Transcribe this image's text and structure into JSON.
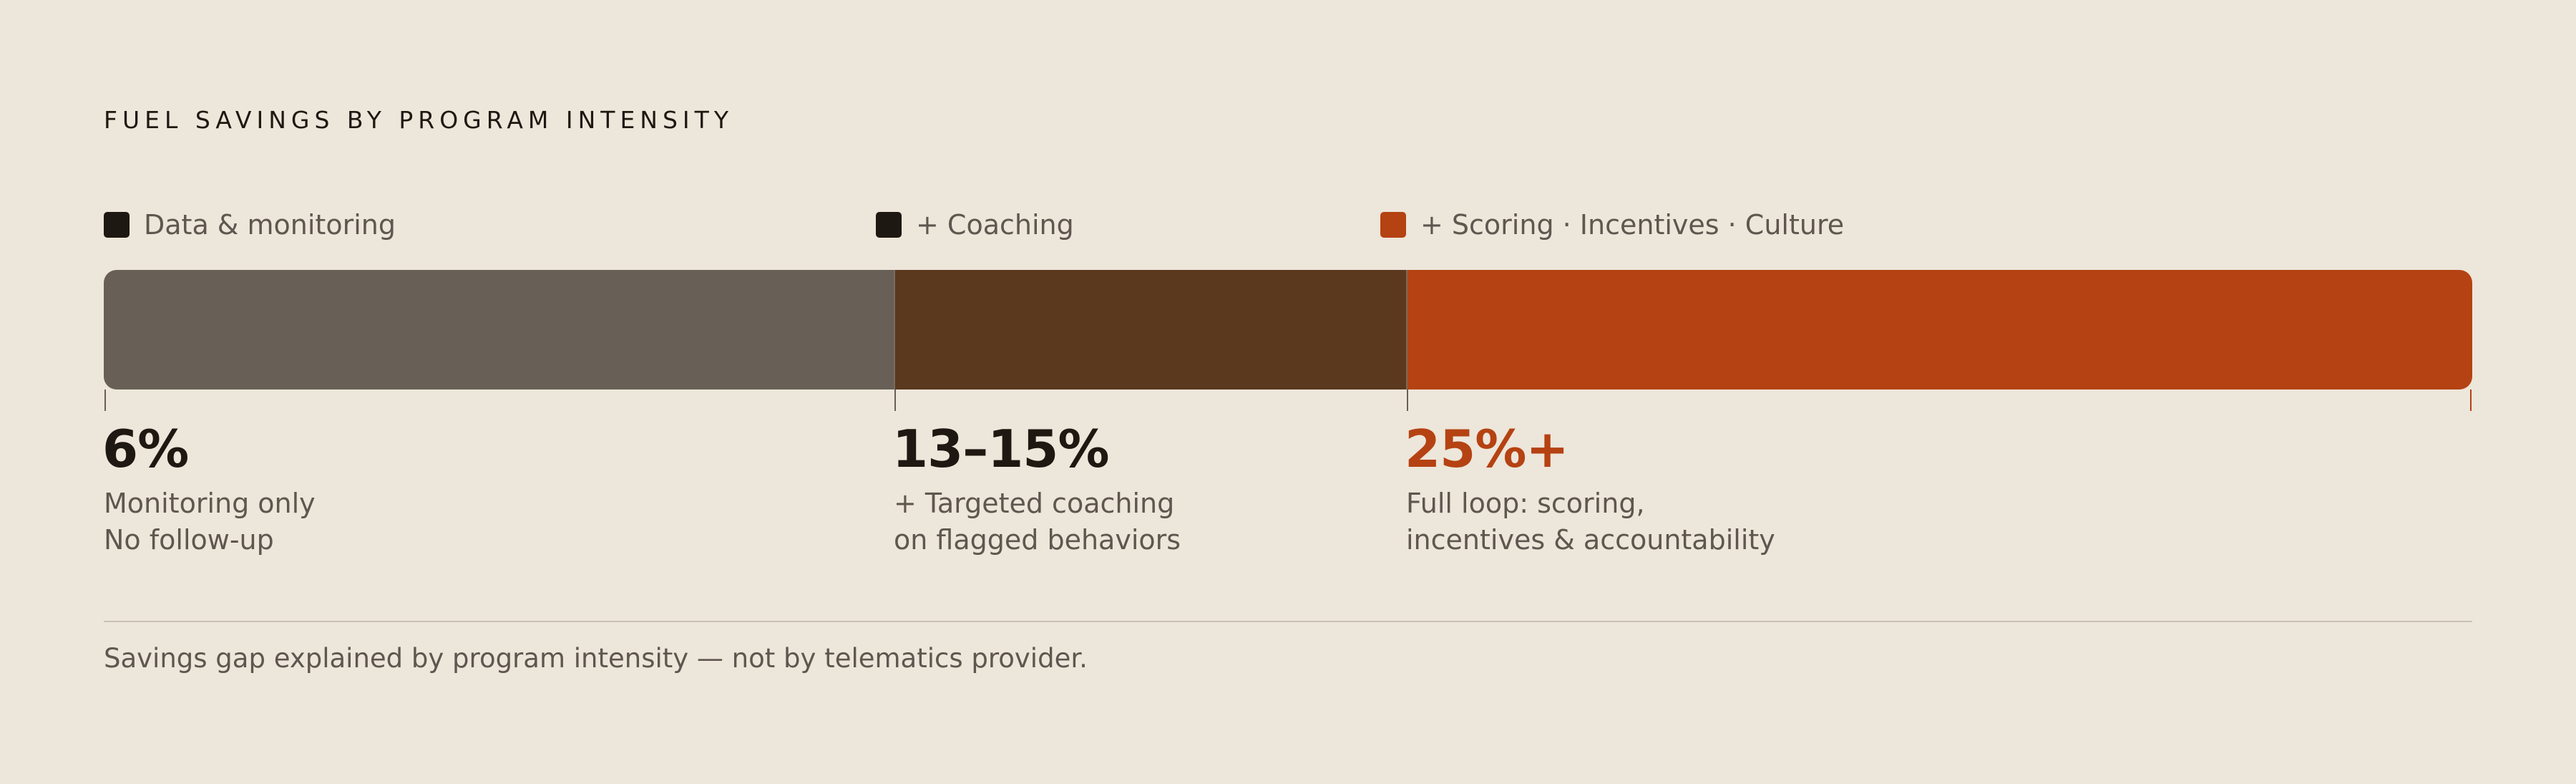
{
  "title": "FUEL SAVINGS BY PROGRAM INTENSITY",
  "legend": [
    "Data & monitoring",
    "+ Coaching",
    "+ Scoring · Incentives · Culture"
  ],
  "segments": [
    {
      "label": "6%",
      "lines": [
        "Monitoring only",
        "No follow-up"
      ]
    },
    {
      "label": "13–15%",
      "lines": [
        "+ Targeted coaching",
        "on flagged behaviors"
      ]
    },
    {
      "label": "25%+",
      "lines": [
        "Full loop: scoring,",
        "incentives & accountability"
      ]
    }
  ],
  "footnote": "Savings gap explained by program intensity — not by telematics provider."
}
